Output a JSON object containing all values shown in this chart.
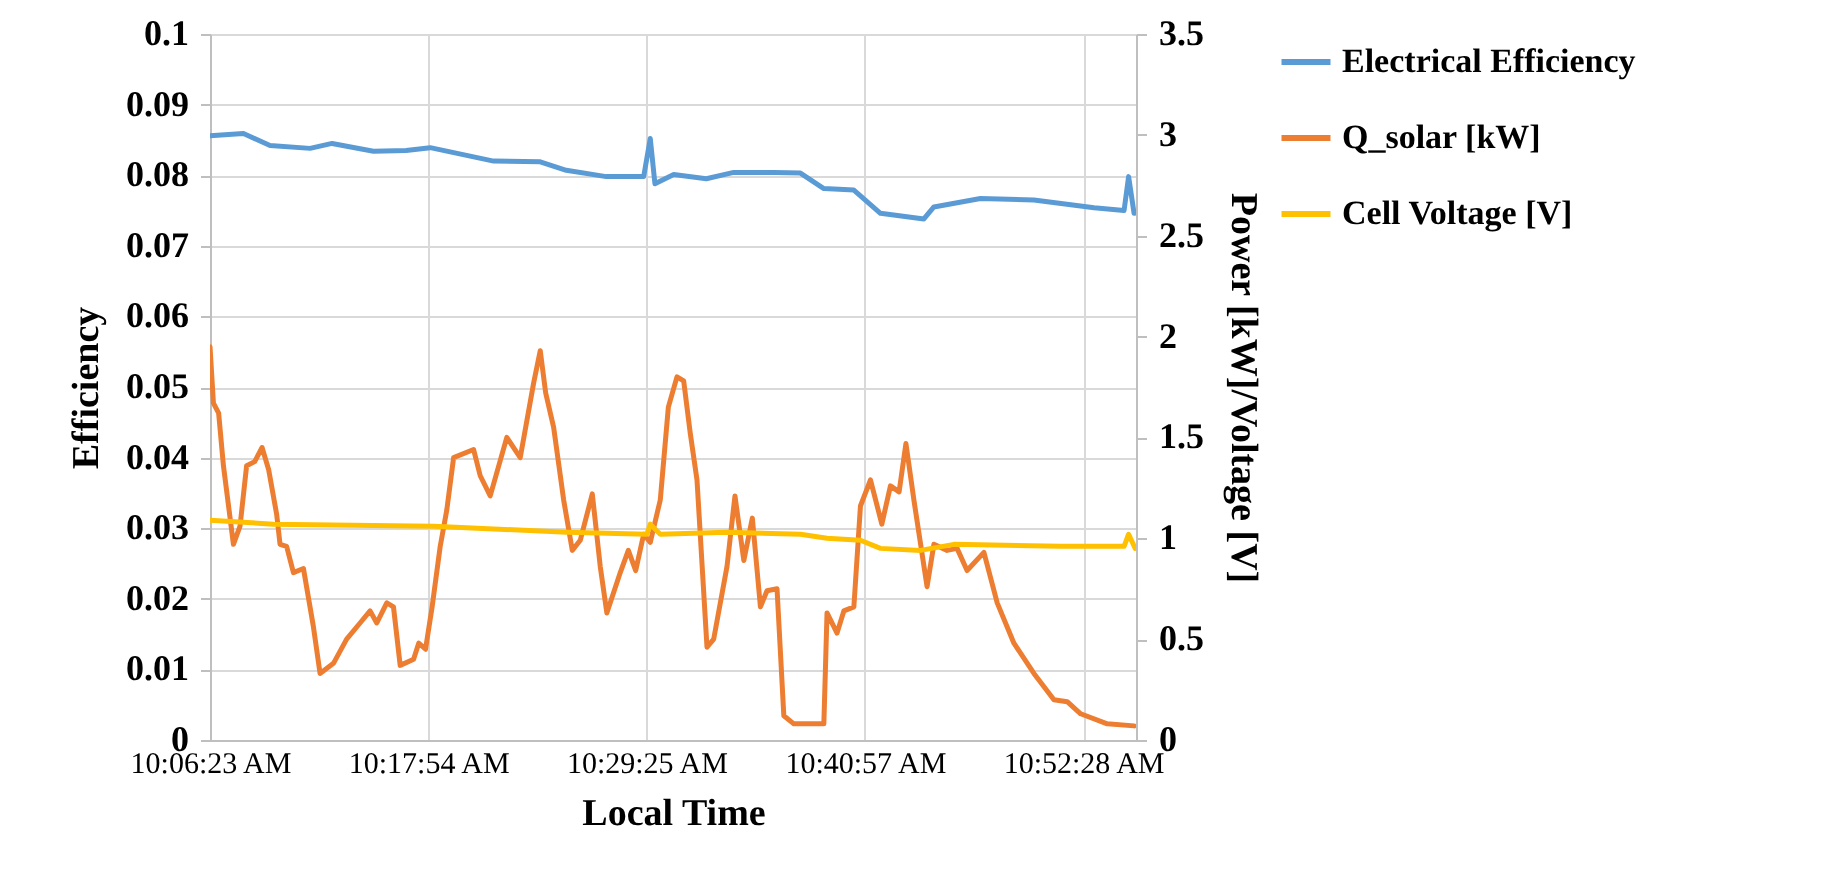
{
  "chart_data": {
    "type": "line",
    "xlabel": "Local Time",
    "ylabel": "Efficiency",
    "y2label": "Power [kW]/Voltage [V]",
    "xlim": [
      10.10639,
      10.921
    ],
    "xticks": [
      {
        "value": 10.10639,
        "label": "10:06:23 AM"
      },
      {
        "value": 10.29833,
        "label": "10:17:54 AM"
      },
      {
        "value": 10.49028,
        "label": "10:29:25 AM"
      },
      {
        "value": 10.6825,
        "label": "10:40:57 AM"
      },
      {
        "value": 10.87444,
        "label": "10:52:28 AM"
      }
    ],
    "ylim": [
      0,
      0.1
    ],
    "yticks": [
      0,
      0.01,
      0.02,
      0.03,
      0.04,
      0.05,
      0.06,
      0.07,
      0.08,
      0.09,
      0.1
    ],
    "y2lim": [
      0,
      3.5
    ],
    "y2ticks": [
      0,
      0.5,
      1,
      1.5,
      2,
      2.5,
      3,
      3.5
    ],
    "grid": true,
    "legend": "right",
    "series": [
      {
        "name": "Electrical Efficiency",
        "color": "#5b9bd5",
        "x": [
          10.1064,
          10.1358,
          10.1592,
          10.1944,
          10.2138,
          10.2502,
          10.2789,
          10.3001,
          10.3559,
          10.3969,
          10.4198,
          10.455,
          10.4879,
          10.4937,
          10.4978,
          10.5143,
          10.543,
          10.5671,
          10.6024,
          10.6258,
          10.6464,
          10.6728,
          10.6962,
          10.7344,
          10.7432,
          10.7842,
          10.8312,
          10.8841,
          10.9105,
          10.9145,
          10.9193
        ],
        "values": [
          0.0856,
          0.0859,
          0.0842,
          0.0838,
          0.0845,
          0.0834,
          0.0835,
          0.0839,
          0.082,
          0.0819,
          0.0807,
          0.0798,
          0.0798,
          0.0852,
          0.0788,
          0.0801,
          0.0795,
          0.0804,
          0.0804,
          0.0803,
          0.0781,
          0.0779,
          0.0746,
          0.0738,
          0.0755,
          0.0767,
          0.0765,
          0.0754,
          0.075,
          0.0798,
          0.0746
        ]
      },
      {
        "name": "Q_solar [kW]",
        "color": "#ed7d31",
        "axis": "y2",
        "x": [
          10.1064,
          10.1094,
          10.114,
          10.1182,
          10.127,
          10.1328,
          10.1386,
          10.1457,
          10.1522,
          10.158,
          10.165,
          10.168,
          10.1738,
          10.1798,
          10.1886,
          10.1974,
          10.2032,
          10.215,
          10.2266,
          10.2384,
          10.2472,
          10.2531,
          10.2619,
          10.2678,
          10.2737,
          10.2855,
          10.29,
          10.296,
          10.3018,
          10.3089,
          10.3147,
          10.3207,
          10.3383,
          10.3441,
          10.3529,
          10.3675,
          10.3793,
          10.3911,
          10.3969,
          10.4017,
          10.4087,
          10.4175,
          10.4251,
          10.4321,
          10.4427,
          10.4497,
          10.4555,
          10.4673,
          10.4744,
          10.4809,
          10.4879,
          10.4937,
          10.5025,
          10.5096,
          10.5172,
          10.5231,
          10.5289,
          10.5348,
          10.5436,
          10.5495,
          10.5612,
          10.5682,
          10.576,
          10.5835,
          10.5906,
          10.5964,
          10.6052,
          10.6112,
          10.62,
          10.6464,
          10.6492,
          10.658,
          10.664,
          10.6728,
          10.6786,
          10.6874,
          10.6974,
          10.705,
          10.7126,
          10.7186,
          10.7256,
          10.7372,
          10.7432,
          10.7548,
          10.7636,
          10.7724,
          10.7872,
          10.7989,
          10.8136,
          10.8312,
          10.8488,
          10.8605,
          10.8723,
          10.8957,
          10.9193
        ],
        "values": [
          1.95,
          1.67,
          1.62,
          1.36,
          0.97,
          1.06,
          1.36,
          1.38,
          1.45,
          1.34,
          1.12,
          0.97,
          0.96,
          0.83,
          0.85,
          0.56,
          0.33,
          0.38,
          0.5,
          0.58,
          0.64,
          0.58,
          0.68,
          0.66,
          0.37,
          0.4,
          0.48,
          0.45,
          0.66,
          0.96,
          1.14,
          1.4,
          1.44,
          1.31,
          1.21,
          1.5,
          1.4,
          1.77,
          1.93,
          1.72,
          1.55,
          1.19,
          0.94,
          0.99,
          1.22,
          0.86,
          0.63,
          0.83,
          0.94,
          0.84,
          1.02,
          0.98,
          1.19,
          1.65,
          1.8,
          1.78,
          1.52,
          1.29,
          0.46,
          0.5,
          0.86,
          1.21,
          0.89,
          1.1,
          0.66,
          0.74,
          0.75,
          0.12,
          0.08,
          0.08,
          0.63,
          0.53,
          0.64,
          0.66,
          1.16,
          1.29,
          1.07,
          1.26,
          1.23,
          1.47,
          1.19,
          0.76,
          0.97,
          0.94,
          0.95,
          0.84,
          0.93,
          0.68,
          0.48,
          0.33,
          0.2,
          0.19,
          0.13,
          0.08,
          0.07
        ]
      },
      {
        "name": "Cell Voltage [V]",
        "color": "#ffc000",
        "axis": "y2",
        "x": [
          10.1064,
          10.1622,
          10.3031,
          10.4203,
          10.4907,
          10.4937,
          10.5025,
          10.5612,
          10.6258,
          10.6492,
          10.6786,
          10.6962,
          10.7314,
          10.7608,
          10.8547,
          10.9105,
          10.9145,
          10.9203
        ],
        "values": [
          1.09,
          1.07,
          1.06,
          1.03,
          1.02,
          1.07,
          1.02,
          1.03,
          1.02,
          1.0,
          0.99,
          0.95,
          0.94,
          0.97,
          0.96,
          0.96,
          1.02,
          0.95
        ]
      }
    ]
  }
}
